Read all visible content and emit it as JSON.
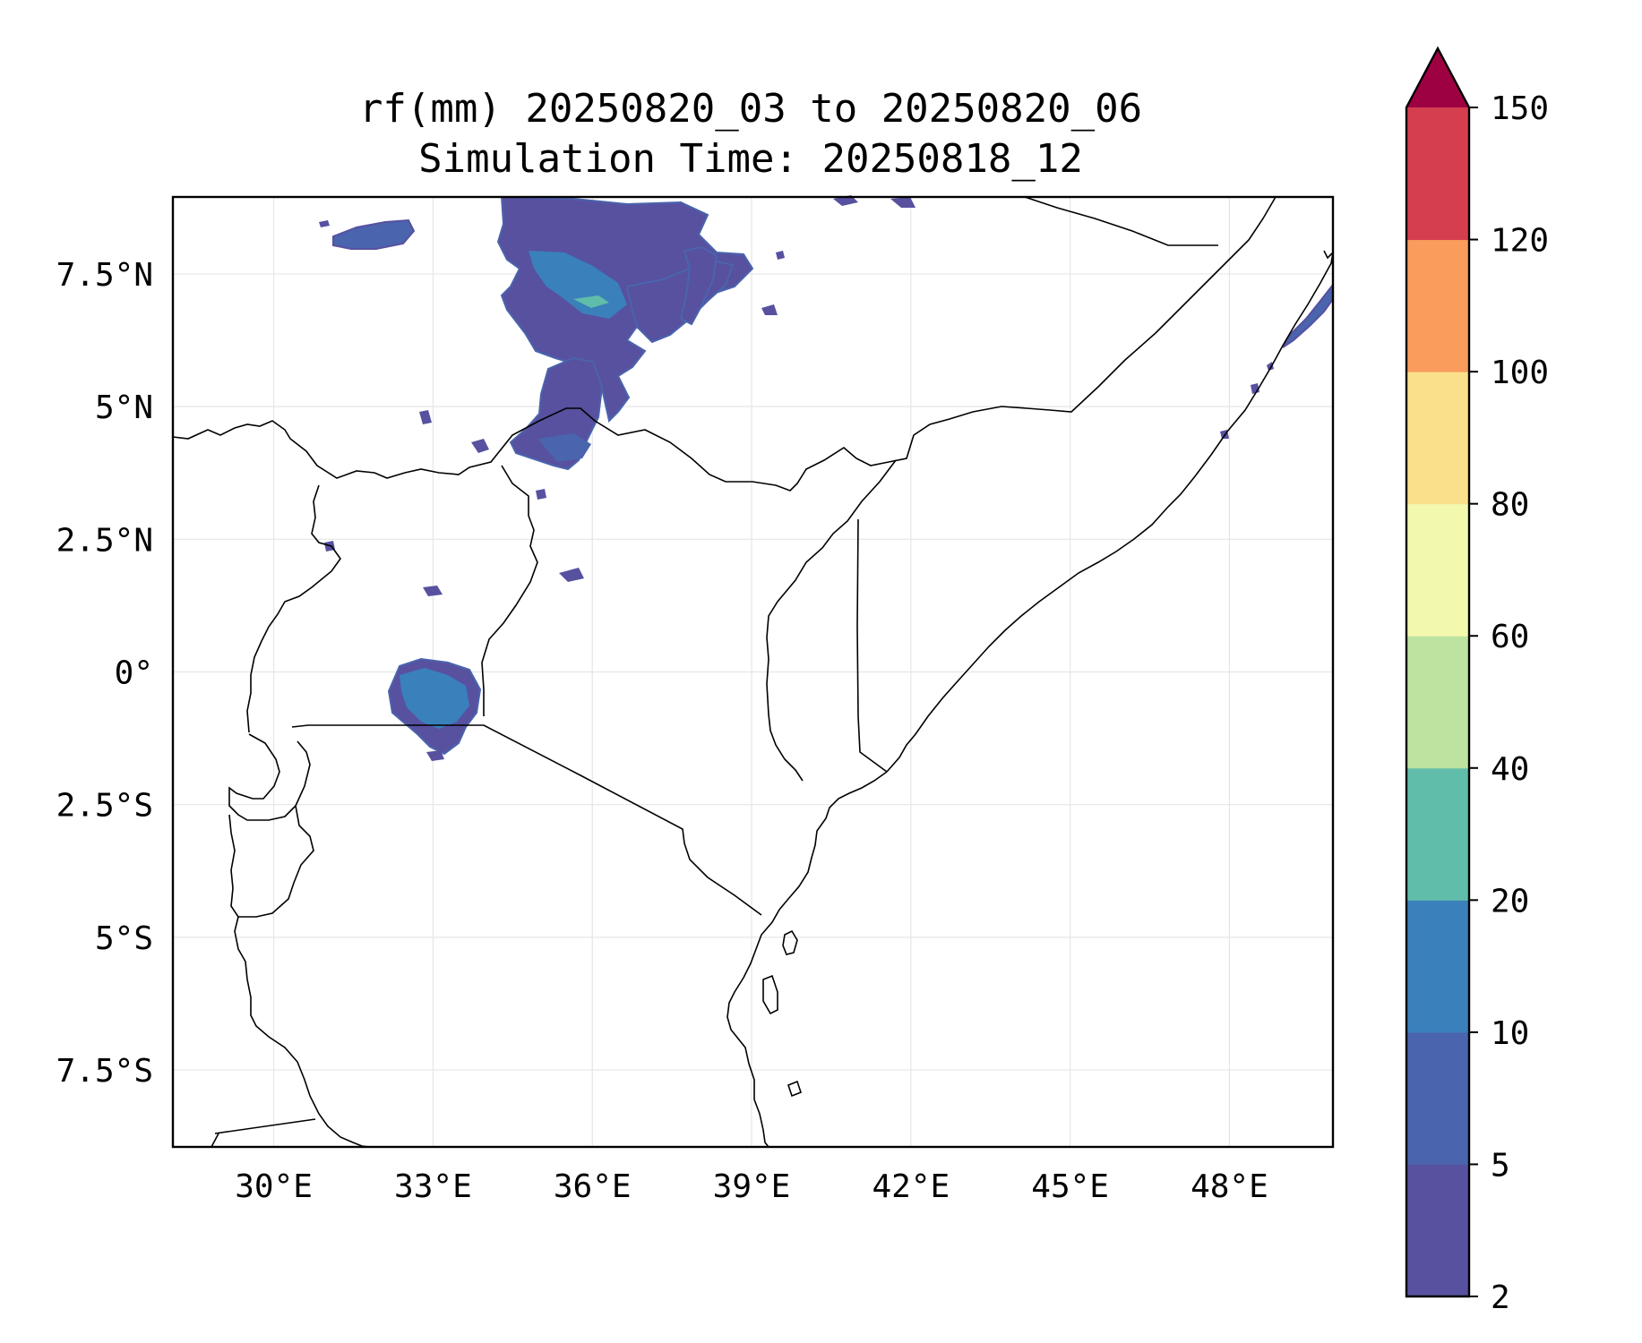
{
  "title": {
    "line1": "rf(mm) 20250820_03 to 20250820_06",
    "line2": "Simulation Time: 20250818_12"
  },
  "map": {
    "lon_range": [
      28.1,
      49.95
    ],
    "lat_range": [
      -8.95,
      8.95
    ],
    "x_ticks": [
      30,
      33,
      36,
      39,
      42,
      45,
      48
    ],
    "x_tick_labels": [
      "30°E",
      "33°E",
      "36°E",
      "39°E",
      "42°E",
      "45°E",
      "48°E"
    ],
    "y_ticks": [
      7.5,
      5,
      2.5,
      0,
      -2.5,
      -5,
      -7.5
    ],
    "y_tick_labels": [
      "7.5°N",
      "5°N",
      "2.5°N",
      "0°",
      "2.5°S",
      "5°S",
      "7.5°S"
    ],
    "grid": true
  },
  "colorbar": {
    "levels": [
      2,
      5,
      10,
      20,
      40,
      60,
      80,
      100,
      120,
      150
    ],
    "tick_labels": [
      "2",
      "5",
      "10",
      "20",
      "40",
      "60",
      "80",
      "100",
      "120",
      "150"
    ],
    "colors": [
      "#5751a0",
      "#4a64ad",
      "#3a80bb",
      "#60bda9",
      "#bde3a0",
      "#f2f8ae",
      "#fbe08c",
      "#f99c5c",
      "#d53e4f"
    ],
    "extend_color": "#9e0142",
    "extend": "max"
  },
  "rainfall_features": [
    {
      "name": "south-sudan-ethiopia-band",
      "level": 1
    },
    {
      "name": "ilemi-kenya-ethiopia",
      "level": 1
    },
    {
      "name": "lake-victoria",
      "level": 2
    },
    {
      "name": "somalia-coast",
      "level": 1
    }
  ]
}
